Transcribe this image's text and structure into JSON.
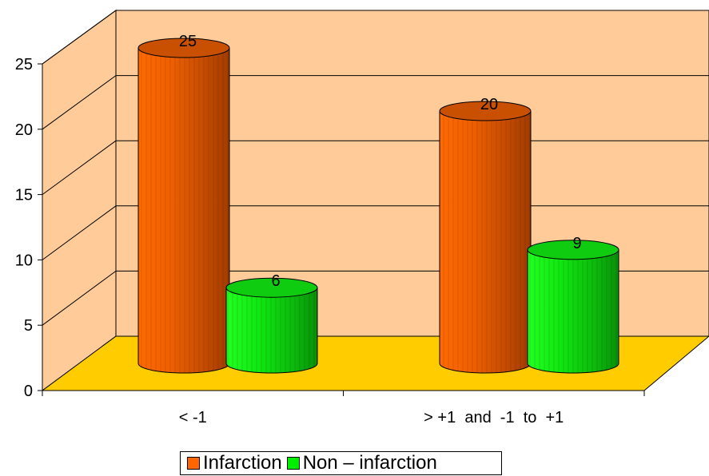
{
  "chart_data": {
    "type": "bar",
    "style": "3d-cylinder",
    "categories": [
      "< -1",
      "> +1  and  -1  to  +1"
    ],
    "series": [
      {
        "name": "Infarction",
        "values": [
          25,
          20
        ],
        "color": "#ff6600"
      },
      {
        "name": "Non – infarction",
        "values": [
          6,
          9
        ],
        "color": "#00ee00"
      }
    ],
    "ylim": [
      0,
      25
    ],
    "yticks": [
      "0",
      "5",
      "10",
      "15",
      "20",
      "25"
    ],
    "data_labels": [
      [
        "25",
        "20"
      ],
      [
        "6",
        "9"
      ]
    ],
    "grid": true,
    "legend_position": "bottom",
    "colors": {
      "wall": "#ffcc99",
      "floor": "#ffcc00"
    }
  }
}
